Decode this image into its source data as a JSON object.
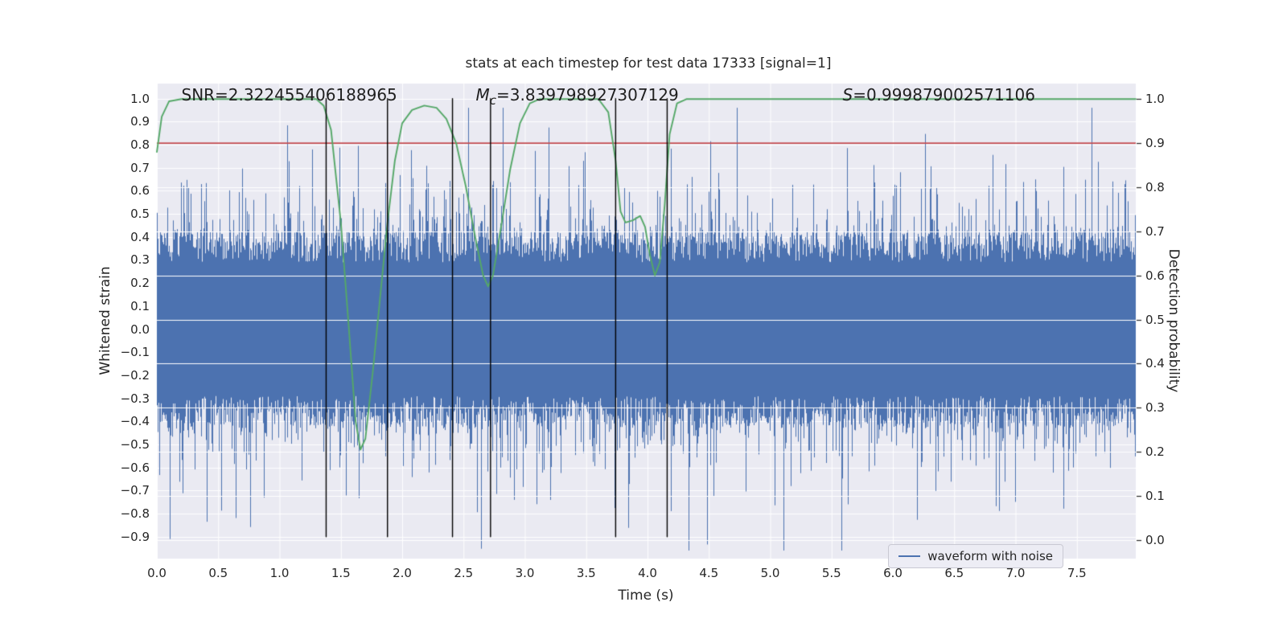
{
  "figure": {
    "title": "stats at each timestep for test data 17333 [signal=1]",
    "xlabel": "Time (s)",
    "ylabel_left": "Whitened strain",
    "ylabel_right": "Detection probability",
    "background": "#ffffff",
    "axes_background": "#eaeaf2",
    "grid_color": "#ffffff",
    "text_color": "#262626"
  },
  "chart_data": {
    "type": "line",
    "xlim": [
      0.0,
      7.98
    ],
    "ylim_strain": [
      -0.995,
      1.065
    ],
    "ylim_prob": [
      -0.042,
      1.035
    ],
    "xticks": [
      0.0,
      0.5,
      1.0,
      1.5,
      2.0,
      2.5,
      3.0,
      3.5,
      4.0,
      4.5,
      5.0,
      5.5,
      6.0,
      6.5,
      7.0,
      7.5
    ],
    "yticks_left": [
      1.0,
      0.9,
      0.8,
      0.7,
      0.6,
      0.5,
      0.4,
      0.3,
      0.2,
      0.1,
      0.0,
      -0.1,
      -0.2,
      -0.3,
      -0.4,
      -0.5,
      -0.6,
      -0.7,
      -0.8,
      -0.9
    ],
    "yticks_right": [
      1.0,
      0.9,
      0.8,
      0.7,
      0.6,
      0.5,
      0.4,
      0.3,
      0.2,
      0.1,
      0.0
    ],
    "grid": true,
    "legend": {
      "label": "waveform with noise",
      "color": "#4c72b0",
      "position": "lower right"
    },
    "series": [
      {
        "name": "waveform with noise",
        "type": "noise_band",
        "axis": "strain",
        "color": "#4c72b0",
        "seed": 20,
        "x_start": 0.0,
        "x_end": 7.98,
        "band_min": 0.29,
        "band_max": 0.43,
        "spike_probability": 0.4,
        "spike_scale": 0.12,
        "max_amplitude": 0.96
      },
      {
        "name": "detection probability",
        "type": "line",
        "axis": "prob",
        "color": "#55a868",
        "points": [
          [
            0.0,
            0.88
          ],
          [
            0.04,
            0.96
          ],
          [
            0.1,
            0.995
          ],
          [
            0.2,
            1.0
          ],
          [
            1.3,
            1.0
          ],
          [
            1.36,
            0.985
          ],
          [
            1.42,
            0.93
          ],
          [
            1.5,
            0.72
          ],
          [
            1.56,
            0.5
          ],
          [
            1.62,
            0.27
          ],
          [
            1.66,
            0.205
          ],
          [
            1.7,
            0.23
          ],
          [
            1.76,
            0.38
          ],
          [
            1.82,
            0.55
          ],
          [
            1.88,
            0.72
          ],
          [
            1.94,
            0.86
          ],
          [
            2.0,
            0.945
          ],
          [
            2.08,
            0.975
          ],
          [
            2.18,
            0.985
          ],
          [
            2.28,
            0.98
          ],
          [
            2.36,
            0.955
          ],
          [
            2.44,
            0.9
          ],
          [
            2.52,
            0.8
          ],
          [
            2.6,
            0.68
          ],
          [
            2.66,
            0.6
          ],
          [
            2.7,
            0.575
          ],
          [
            2.74,
            0.6
          ],
          [
            2.8,
            0.7
          ],
          [
            2.88,
            0.84
          ],
          [
            2.96,
            0.945
          ],
          [
            3.04,
            0.99
          ],
          [
            3.12,
            1.0
          ],
          [
            3.6,
            1.0
          ],
          [
            3.68,
            0.97
          ],
          [
            3.74,
            0.86
          ],
          [
            3.78,
            0.745
          ],
          [
            3.82,
            0.72
          ],
          [
            3.88,
            0.725
          ],
          [
            3.94,
            0.735
          ],
          [
            3.98,
            0.71
          ],
          [
            4.02,
            0.645
          ],
          [
            4.06,
            0.6
          ],
          [
            4.1,
            0.63
          ],
          [
            4.14,
            0.76
          ],
          [
            4.18,
            0.92
          ],
          [
            4.24,
            0.99
          ],
          [
            4.32,
            1.0
          ],
          [
            7.98,
            1.0
          ]
        ]
      },
      {
        "name": "detection threshold",
        "type": "hline",
        "axis": "prob",
        "color": "#c44e52",
        "value": 0.9
      },
      {
        "name": "event markers",
        "type": "vlines",
        "axis": "strain",
        "color": "#000000",
        "x": [
          1.38,
          1.88,
          2.41,
          2.72,
          3.74,
          4.16
        ],
        "ymin": -0.9,
        "ymax": 1.0
      }
    ],
    "annotations": [
      {
        "id": "snr",
        "text": "SNR=2.322455406188965",
        "x": 0.2,
        "y": 1.0
      },
      {
        "id": "mc",
        "var": "M",
        "sub": "c",
        "rest": "=3.839798927307129",
        "x": 2.6,
        "y": 1.0
      },
      {
        "id": "s",
        "var": "S",
        "rest": "=0.999879002571106",
        "x": 5.59,
        "y": 1.0
      }
    ]
  }
}
